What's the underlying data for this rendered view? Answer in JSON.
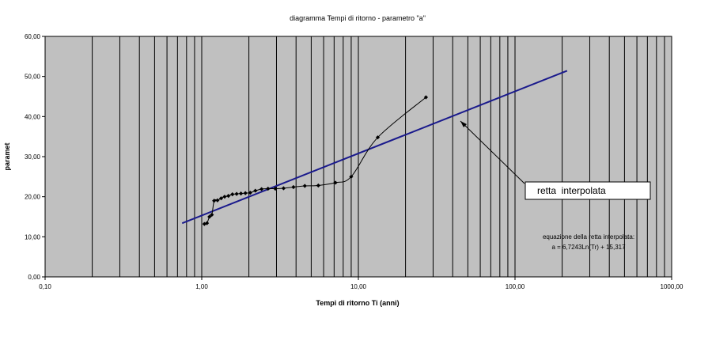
{
  "chart_data": {
    "type": "scatter",
    "title": "diagramma Tempi di ritorno - parametro \"a\"",
    "xlabel": "Tempi di ritorno Ti (anni)",
    "ylabel": "paramet",
    "x_scale": "log",
    "xlim": [
      0.1,
      1000
    ],
    "ylim": [
      0,
      60
    ],
    "x_tick_labels": [
      "0,10",
      "1,00",
      "10,00",
      "100,00",
      "1000,00"
    ],
    "y_tick_labels": [
      "0,00",
      "10,00",
      "20,00",
      "30,00",
      "40,00",
      "50,00",
      "60,00"
    ],
    "grid": "vertical log gridlines",
    "plot_background": "#c0c0c0",
    "series": [
      {
        "kind": "observed",
        "color": "#000000",
        "points": [
          [
            1.04,
            13.2
          ],
          [
            1.08,
            13.4
          ],
          [
            1.12,
            15.0
          ],
          [
            1.16,
            15.5
          ],
          [
            1.2,
            19.0
          ],
          [
            1.26,
            19.1
          ],
          [
            1.33,
            19.6
          ],
          [
            1.4,
            20.0
          ],
          [
            1.48,
            20.2
          ],
          [
            1.57,
            20.6
          ],
          [
            1.67,
            20.7
          ],
          [
            1.78,
            20.8
          ],
          [
            1.9,
            20.9
          ],
          [
            2.04,
            21.0
          ],
          [
            2.2,
            21.5
          ],
          [
            2.41,
            21.9
          ],
          [
            2.65,
            22.0
          ],
          [
            2.95,
            22.0
          ],
          [
            3.33,
            22.1
          ],
          [
            3.85,
            22.4
          ],
          [
            4.55,
            22.7
          ],
          [
            5.55,
            22.8
          ],
          [
            7.14,
            23.5
          ],
          [
            9.0,
            25.0
          ],
          [
            13.3,
            34.8
          ],
          [
            27.0,
            44.8
          ]
        ]
      },
      {
        "kind": "fit",
        "color": "#1a1a8c",
        "x_range": [
          0.75,
          215
        ]
      }
    ],
    "annotations": {
      "fit_label": "retta  interpolata",
      "equation_caption": "equazione della retta interpolata:",
      "equation": "a = 6,7243Ln(Tr) + 15,317",
      "fit_slope": 6.7243,
      "fit_intercept": 15.317,
      "arrow_target_x": 40
    }
  }
}
